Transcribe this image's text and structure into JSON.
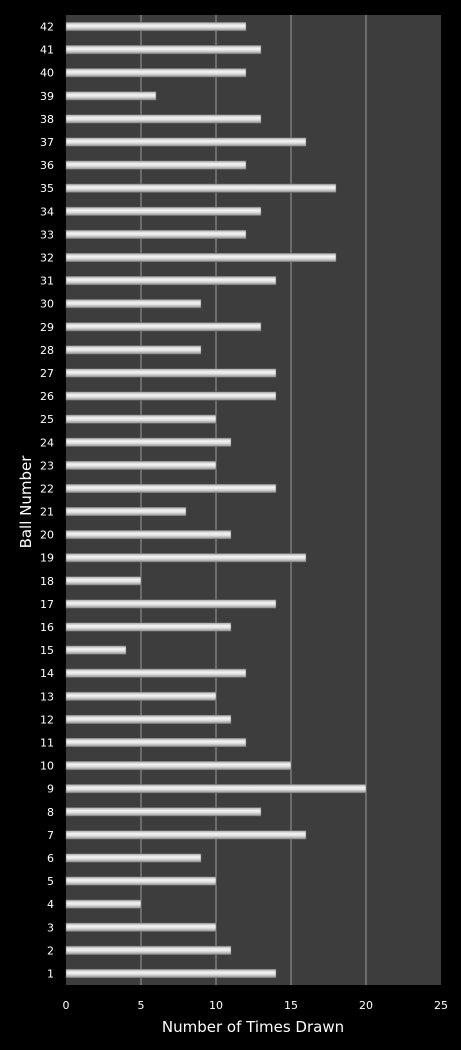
{
  "chart_data": {
    "type": "bar",
    "orientation": "horizontal",
    "xlabel": "Number of Times Drawn",
    "ylabel": "Ball Number",
    "xlim": [
      0,
      25
    ],
    "xticks": [
      0,
      5,
      10,
      15,
      20,
      25
    ],
    "grid": "vertical major gridlines",
    "legend": "none",
    "colors": {
      "background": "#000000",
      "plot_area": "#3d3d3d",
      "bar": "#d8d8d8",
      "gridline": "#b5b5b5",
      "text": "#ffffff"
    },
    "categories": [
      "1",
      "2",
      "3",
      "4",
      "5",
      "6",
      "7",
      "8",
      "9",
      "10",
      "11",
      "12",
      "13",
      "14",
      "15",
      "16",
      "17",
      "18",
      "19",
      "20",
      "21",
      "22",
      "23",
      "24",
      "25",
      "26",
      "27",
      "28",
      "29",
      "30",
      "31",
      "32",
      "33",
      "34",
      "35",
      "36",
      "37",
      "38",
      "39",
      "40",
      "41",
      "42"
    ],
    "values": [
      14,
      11,
      10,
      5,
      10,
      9,
      16,
      13,
      20,
      15,
      12,
      11,
      10,
      12,
      4,
      11,
      14,
      5,
      16,
      11,
      8,
      14,
      10,
      11,
      10,
      14,
      14,
      9,
      13,
      9,
      14,
      18,
      12,
      13,
      18,
      12,
      16,
      13,
      6,
      12,
      13,
      12
    ]
  }
}
